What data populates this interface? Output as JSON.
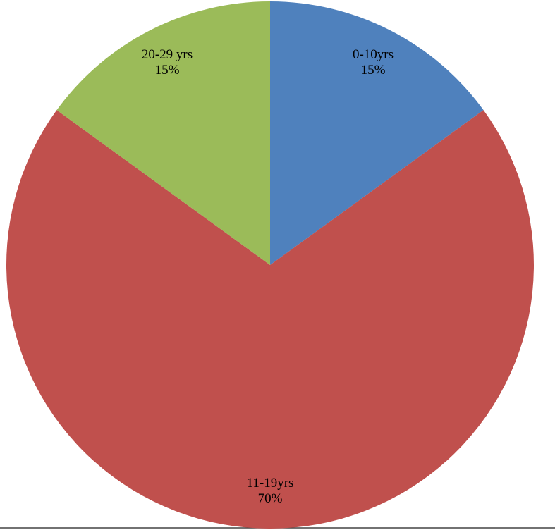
{
  "chart_data": {
    "type": "pie",
    "categories": [
      "0-10yrs",
      "11-19yrs",
      "20-29 yrs"
    ],
    "values": [
      15,
      70,
      15
    ],
    "value_labels": [
      "15%",
      "70%",
      "15%"
    ],
    "colors": [
      "#4f81bd",
      "#c0504d",
      "#9bbb59"
    ]
  }
}
